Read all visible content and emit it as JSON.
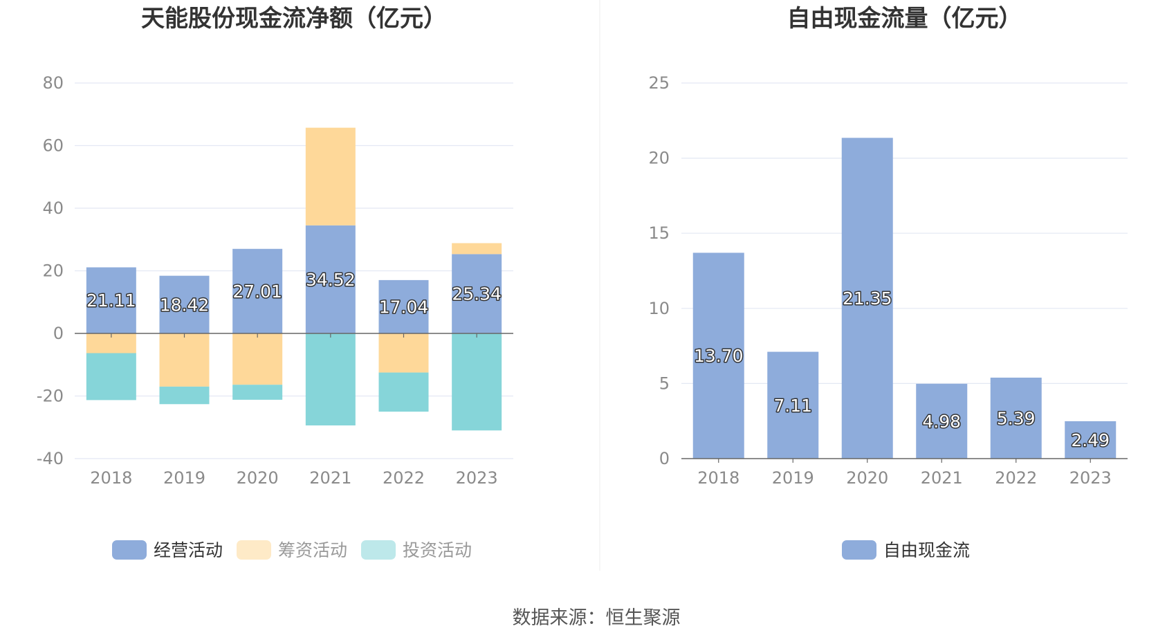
{
  "colors": {
    "operating": "#8eacdb",
    "financing": "#fed899",
    "investing": "#86d5d9",
    "grid": "#e3e8f3",
    "axis": "#666666",
    "divider": "#eeeeee"
  },
  "source": "数据来源：恒生聚源",
  "chart_data": [
    {
      "type": "bar",
      "stacked": true,
      "title": "天能股份现金流净额（亿元）",
      "categories": [
        "2018",
        "2019",
        "2020",
        "2021",
        "2022",
        "2023"
      ],
      "ylim": [
        -40,
        80
      ],
      "yticks": [
        80,
        60,
        40,
        20,
        0,
        -20,
        -40
      ],
      "grid": true,
      "legend_position": "bottom",
      "series": [
        {
          "name": "经营活动",
          "color_key": "operating",
          "values": [
            21.11,
            18.42,
            27.01,
            34.52,
            17.04,
            25.34
          ],
          "labels": [
            "21.11",
            "18.42",
            "27.01",
            "34.52",
            "17.04",
            "25.34"
          ]
        },
        {
          "name": "筹资活动",
          "color_key": "financing",
          "values": [
            -6.3,
            -17.0,
            -16.4,
            31.2,
            -12.5,
            3.5
          ]
        },
        {
          "name": "投资活动",
          "color_key": "investing",
          "values": [
            -15.0,
            -5.6,
            -4.8,
            -29.4,
            -12.5,
            -31.0
          ]
        }
      ]
    },
    {
      "type": "bar",
      "stacked": false,
      "title": "自由现金流量（亿元）",
      "categories": [
        "2018",
        "2019",
        "2020",
        "2021",
        "2022",
        "2023"
      ],
      "ylim": [
        0,
        25
      ],
      "yticks": [
        25,
        20,
        15,
        10,
        5,
        0
      ],
      "grid": true,
      "legend_position": "bottom",
      "series": [
        {
          "name": "自由现金流",
          "color_key": "operating",
          "values": [
            13.7,
            7.11,
            21.35,
            4.98,
            5.39,
            2.49
          ],
          "labels": [
            "13.70",
            "7.11",
            "21.35",
            "4.98",
            "5.39",
            "2.49"
          ]
        }
      ]
    }
  ]
}
